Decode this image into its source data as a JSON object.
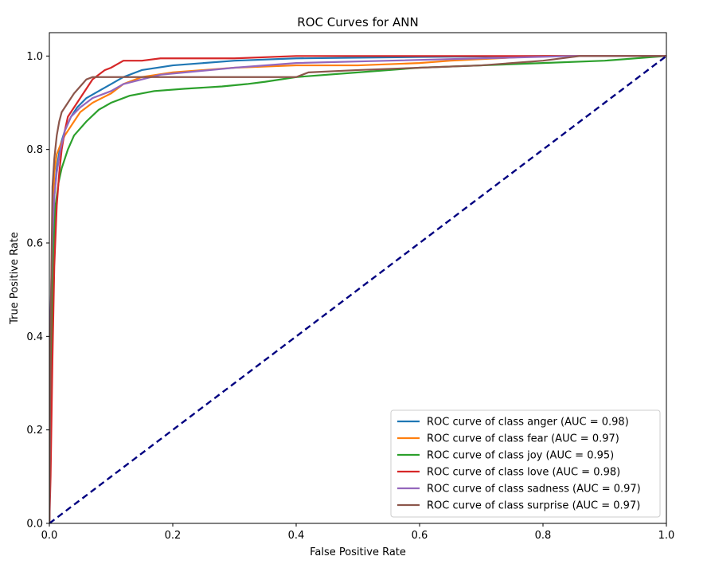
{
  "chart_data": {
    "type": "line",
    "title": "ROC Curves for ANN",
    "xlabel": "False Positive Rate",
    "ylabel": "True Positive Rate",
    "xlim": [
      0.0,
      1.0
    ],
    "ylim": [
      0.0,
      1.05
    ],
    "xticks": [
      "0.0",
      "0.2",
      "0.4",
      "0.6",
      "0.8",
      "1.0"
    ],
    "yticks": [
      "0.0",
      "0.2",
      "0.4",
      "0.6",
      "0.8",
      "1.0"
    ],
    "grid": false,
    "legend_position": "lower right",
    "series": [
      {
        "name": "ROC curve of class anger (AUC = 0.98)",
        "color": "#1f77b4",
        "x": [
          0.0,
          0.002,
          0.005,
          0.008,
          0.012,
          0.018,
          0.025,
          0.035,
          0.045,
          0.06,
          0.08,
          0.1,
          0.12,
          0.15,
          0.2,
          0.3,
          0.4,
          0.6,
          0.8,
          1.0
        ],
        "y": [
          0.0,
          0.35,
          0.58,
          0.7,
          0.76,
          0.81,
          0.84,
          0.87,
          0.89,
          0.91,
          0.925,
          0.94,
          0.955,
          0.97,
          0.98,
          0.99,
          0.995,
          0.998,
          1.0,
          1.0
        ]
      },
      {
        "name": "ROC curve of class fear (AUC = 0.97)",
        "color": "#ff7f0e",
        "x": [
          0.0,
          0.002,
          0.005,
          0.008,
          0.012,
          0.018,
          0.025,
          0.035,
          0.05,
          0.07,
          0.1,
          0.12,
          0.15,
          0.2,
          0.3,
          0.4,
          0.5,
          0.6,
          0.65,
          0.8,
          1.0
        ],
        "y": [
          0.0,
          0.4,
          0.65,
          0.75,
          0.79,
          0.81,
          0.83,
          0.85,
          0.88,
          0.9,
          0.92,
          0.94,
          0.955,
          0.965,
          0.975,
          0.98,
          0.98,
          0.985,
          0.99,
          1.0,
          1.0
        ]
      },
      {
        "name": "ROC curve of class joy (AUC = 0.95)",
        "color": "#2ca02c",
        "x": [
          0.0,
          0.003,
          0.006,
          0.01,
          0.015,
          0.02,
          0.03,
          0.04,
          0.06,
          0.08,
          0.1,
          0.13,
          0.17,
          0.22,
          0.28,
          0.32,
          0.35,
          0.4,
          0.5,
          0.6,
          0.7,
          0.8,
          0.9,
          1.0
        ],
        "y": [
          0.0,
          0.3,
          0.55,
          0.68,
          0.73,
          0.76,
          0.8,
          0.83,
          0.86,
          0.885,
          0.9,
          0.915,
          0.925,
          0.93,
          0.935,
          0.94,
          0.945,
          0.955,
          0.965,
          0.975,
          0.98,
          0.985,
          0.99,
          1.0
        ]
      },
      {
        "name": "ROC curve of class love (AUC = 0.98)",
        "color": "#d62728",
        "x": [
          0.0,
          0.002,
          0.005,
          0.008,
          0.012,
          0.016,
          0.02,
          0.025,
          0.03,
          0.04,
          0.05,
          0.06,
          0.07,
          0.08,
          0.09,
          0.1,
          0.12,
          0.15,
          0.18,
          0.22,
          0.3,
          0.4,
          0.6,
          0.8,
          1.0
        ],
        "y": [
          0.0,
          0.1,
          0.35,
          0.55,
          0.68,
          0.75,
          0.8,
          0.84,
          0.87,
          0.89,
          0.91,
          0.93,
          0.95,
          0.96,
          0.97,
          0.975,
          0.99,
          0.99,
          0.995,
          0.995,
          0.995,
          1.0,
          1.0,
          1.0,
          1.0
        ]
      },
      {
        "name": "ROC curve of class sadness (AUC = 0.97)",
        "color": "#9467bd",
        "x": [
          0.0,
          0.002,
          0.005,
          0.008,
          0.012,
          0.018,
          0.025,
          0.035,
          0.05,
          0.07,
          0.1,
          0.12,
          0.15,
          0.18,
          0.22,
          0.3,
          0.4,
          0.55,
          0.7,
          0.85,
          1.0
        ],
        "y": [
          0.0,
          0.45,
          0.62,
          0.7,
          0.75,
          0.8,
          0.84,
          0.87,
          0.89,
          0.91,
          0.925,
          0.94,
          0.95,
          0.96,
          0.965,
          0.975,
          0.985,
          0.99,
          0.995,
          1.0,
          1.0
        ]
      },
      {
        "name": "ROC curve of class surprise (AUC = 0.97)",
        "color": "#8c564b",
        "x": [
          0.0,
          0.002,
          0.005,
          0.008,
          0.012,
          0.016,
          0.02,
          0.025,
          0.03,
          0.04,
          0.05,
          0.06,
          0.07,
          0.075,
          0.08,
          0.1,
          0.2,
          0.3,
          0.4,
          0.42,
          0.5,
          0.6,
          0.7,
          0.8,
          0.86,
          1.0
        ],
        "y": [
          0.0,
          0.4,
          0.72,
          0.78,
          0.83,
          0.86,
          0.88,
          0.89,
          0.9,
          0.92,
          0.935,
          0.95,
          0.955,
          0.955,
          0.955,
          0.955,
          0.955,
          0.955,
          0.955,
          0.965,
          0.97,
          0.975,
          0.98,
          0.99,
          1.0,
          1.0
        ]
      }
    ],
    "reference_line": {
      "x": [
        0.0,
        1.0
      ],
      "y": [
        0.0,
        1.0
      ],
      "color": "#000080",
      "style": "dashed"
    }
  }
}
